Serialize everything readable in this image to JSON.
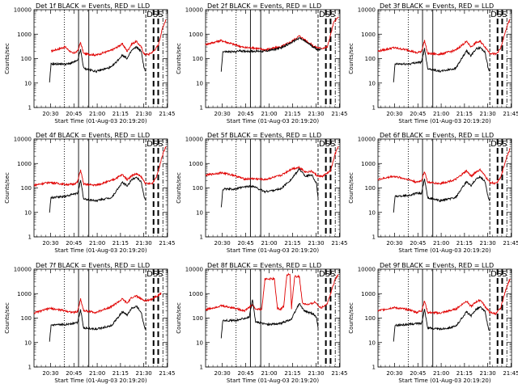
{
  "chart_data": {
    "type": "line",
    "layout": "3x3",
    "x_tick_labels": [
      "20:30",
      "20:45",
      "21:00",
      "21:15",
      "21:30",
      "21:45"
    ],
    "x_range_minutes": [
      0,
      86
    ],
    "y_scale": "log",
    "y_range": [
      1,
      10000
    ],
    "y_tick_labels": [
      "1",
      "10",
      "100",
      "1000",
      "10000"
    ],
    "ylabel": "Counts/sec",
    "xlabel": "Start Time (01-Aug-03 20:19:20)",
    "series_legend": "BLACK = Events, RED = LLD",
    "annotation": "DSS",
    "markers_minutes": {
      "dotted": [
        19.5
      ],
      "solid": [
        28.7,
        35.3
      ],
      "dashed": [
        72,
        77,
        80
      ]
    },
    "detectors": [
      {
        "name": "Det 1f",
        "title": "Det 1f BLACK = Events, RED = LLD",
        "red": [
          [
            11,
            200
          ],
          [
            20,
            300
          ],
          [
            25,
            160
          ],
          [
            28,
            200
          ],
          [
            30,
            450
          ],
          [
            32,
            160
          ],
          [
            40,
            140
          ],
          [
            50,
            220
          ],
          [
            57,
            400
          ],
          [
            60,
            200
          ],
          [
            63,
            400
          ],
          [
            66,
            500
          ],
          [
            69,
            300
          ],
          [
            71,
            150
          ],
          [
            74,
            150
          ],
          [
            77,
            200
          ],
          [
            80,
            350
          ],
          [
            83,
            2000
          ],
          [
            85,
            4000
          ]
        ],
        "black": [
          [
            10,
            10
          ],
          [
            11,
            60
          ],
          [
            19,
            60
          ],
          [
            22,
            60
          ],
          [
            25,
            70
          ],
          [
            28,
            80
          ],
          [
            30,
            230
          ],
          [
            32,
            40
          ],
          [
            40,
            30
          ],
          [
            50,
            45
          ],
          [
            57,
            140
          ],
          [
            60,
            100
          ],
          [
            63,
            220
          ],
          [
            66,
            300
          ],
          [
            69,
            200
          ],
          [
            71,
            40
          ],
          [
            72,
            30
          ]
        ]
      },
      {
        "name": "Det 2f",
        "title": "Det 2f BLACK = Events, RED = LLD",
        "red": [
          [
            0,
            380
          ],
          [
            10,
            550
          ],
          [
            18,
            380
          ],
          [
            25,
            280
          ],
          [
            30,
            280
          ],
          [
            38,
            230
          ],
          [
            48,
            300
          ],
          [
            55,
            500
          ],
          [
            60,
            850
          ],
          [
            65,
            500
          ],
          [
            70,
            300
          ],
          [
            74,
            260
          ],
          [
            78,
            300
          ],
          [
            82,
            3000
          ],
          [
            85,
            5000
          ]
        ],
        "black": [
          [
            10,
            30
          ],
          [
            11,
            190
          ],
          [
            19,
            190
          ],
          [
            22,
            210
          ],
          [
            25,
            200
          ],
          [
            30,
            200
          ],
          [
            38,
            200
          ],
          [
            48,
            270
          ],
          [
            55,
            450
          ],
          [
            60,
            700
          ],
          [
            65,
            450
          ],
          [
            70,
            270
          ],
          [
            72,
            230
          ],
          [
            74,
            250
          ]
        ]
      },
      {
        "name": "Det 3f",
        "title": "Det 3f BLACK = Events, RED = LLD",
        "red": [
          [
            0,
            200
          ],
          [
            10,
            280
          ],
          [
            20,
            220
          ],
          [
            25,
            170
          ],
          [
            28,
            200
          ],
          [
            30,
            550
          ],
          [
            32,
            160
          ],
          [
            40,
            150
          ],
          [
            50,
            220
          ],
          [
            57,
            500
          ],
          [
            60,
            300
          ],
          [
            63,
            450
          ],
          [
            66,
            500
          ],
          [
            69,
            300
          ],
          [
            72,
            170
          ],
          [
            76,
            150
          ],
          [
            79,
            260
          ],
          [
            83,
            2000
          ],
          [
            85,
            4000
          ]
        ],
        "black": [
          [
            10,
            10
          ],
          [
            11,
            60
          ],
          [
            20,
            60
          ],
          [
            25,
            70
          ],
          [
            28,
            70
          ],
          [
            30,
            260
          ],
          [
            32,
            40
          ],
          [
            40,
            30
          ],
          [
            50,
            40
          ],
          [
            57,
            200
          ],
          [
            60,
            130
          ],
          [
            63,
            250
          ],
          [
            66,
            280
          ],
          [
            69,
            180
          ],
          [
            71,
            40
          ],
          [
            72,
            30
          ]
        ]
      },
      {
        "name": "Det 4f",
        "title": "Det 4f BLACK = Events, RED = LLD",
        "red": [
          [
            0,
            130
          ],
          [
            10,
            170
          ],
          [
            20,
            140
          ],
          [
            25,
            140
          ],
          [
            28,
            170
          ],
          [
            30,
            550
          ],
          [
            32,
            140
          ],
          [
            40,
            130
          ],
          [
            50,
            200
          ],
          [
            57,
            350
          ],
          [
            60,
            220
          ],
          [
            63,
            320
          ],
          [
            66,
            380
          ],
          [
            69,
            280
          ],
          [
            72,
            150
          ],
          [
            76,
            150
          ],
          [
            79,
            300
          ],
          [
            83,
            2500
          ],
          [
            85,
            5000
          ]
        ],
        "black": [
          [
            10,
            10
          ],
          [
            11,
            40
          ],
          [
            20,
            45
          ],
          [
            25,
            55
          ],
          [
            28,
            60
          ],
          [
            30,
            200
          ],
          [
            32,
            35
          ],
          [
            40,
            30
          ],
          [
            50,
            40
          ],
          [
            57,
            170
          ],
          [
            60,
            120
          ],
          [
            63,
            220
          ],
          [
            66,
            280
          ],
          [
            69,
            180
          ],
          [
            71,
            40
          ],
          [
            72,
            30
          ]
        ]
      },
      {
        "name": "Det 5f",
        "title": "Det 5f BLACK = Events, RED = LLD",
        "red": [
          [
            0,
            330
          ],
          [
            10,
            420
          ],
          [
            18,
            330
          ],
          [
            25,
            230
          ],
          [
            30,
            240
          ],
          [
            38,
            220
          ],
          [
            48,
            320
          ],
          [
            55,
            600
          ],
          [
            60,
            700
          ],
          [
            64,
            450
          ],
          [
            68,
            480
          ],
          [
            72,
            300
          ],
          [
            75,
            300
          ],
          [
            80,
            500
          ],
          [
            83,
            2500
          ],
          [
            85,
            5000
          ]
        ],
        "black": [
          [
            10,
            15
          ],
          [
            11,
            90
          ],
          [
            19,
            90
          ],
          [
            25,
            110
          ],
          [
            30,
            120
          ],
          [
            38,
            70
          ],
          [
            48,
            90
          ],
          [
            55,
            230
          ],
          [
            60,
            600
          ],
          [
            64,
            300
          ],
          [
            68,
            350
          ],
          [
            71,
            150
          ],
          [
            72,
            40
          ]
        ]
      },
      {
        "name": "Det 6f",
        "title": "Det 6f BLACK = Events, RED = LLD",
        "red": [
          [
            0,
            220
          ],
          [
            10,
            300
          ],
          [
            20,
            220
          ],
          [
            25,
            170
          ],
          [
            28,
            200
          ],
          [
            30,
            480
          ],
          [
            32,
            170
          ],
          [
            40,
            150
          ],
          [
            50,
            220
          ],
          [
            57,
            500
          ],
          [
            60,
            300
          ],
          [
            63,
            450
          ],
          [
            66,
            550
          ],
          [
            69,
            300
          ],
          [
            72,
            170
          ],
          [
            76,
            150
          ],
          [
            79,
            260
          ],
          [
            83,
            2000
          ],
          [
            85,
            4000
          ]
        ],
        "black": [
          [
            10,
            10
          ],
          [
            11,
            45
          ],
          [
            20,
            50
          ],
          [
            25,
            60
          ],
          [
            28,
            60
          ],
          [
            30,
            230
          ],
          [
            32,
            40
          ],
          [
            40,
            30
          ],
          [
            50,
            40
          ],
          [
            57,
            180
          ],
          [
            60,
            120
          ],
          [
            63,
            230
          ],
          [
            66,
            280
          ],
          [
            69,
            180
          ],
          [
            71,
            40
          ],
          [
            72,
            30
          ]
        ]
      },
      {
        "name": "Det 7f",
        "title": "Det 7f BLACK = Events, RED = LLD",
        "red": [
          [
            0,
            160
          ],
          [
            10,
            250
          ],
          [
            20,
            200
          ],
          [
            25,
            170
          ],
          [
            28,
            180
          ],
          [
            30,
            600
          ],
          [
            32,
            200
          ],
          [
            40,
            170
          ],
          [
            50,
            300
          ],
          [
            57,
            600
          ],
          [
            60,
            400
          ],
          [
            63,
            700
          ],
          [
            66,
            800
          ],
          [
            69,
            600
          ],
          [
            72,
            500
          ],
          [
            76,
            600
          ],
          [
            79,
            800
          ],
          [
            82,
            1000
          ]
        ],
        "black": [
          [
            10,
            10
          ],
          [
            11,
            50
          ],
          [
            20,
            55
          ],
          [
            25,
            60
          ],
          [
            28,
            65
          ],
          [
            30,
            220
          ],
          [
            32,
            40
          ],
          [
            40,
            35
          ],
          [
            50,
            50
          ],
          [
            57,
            180
          ],
          [
            60,
            130
          ],
          [
            63,
            250
          ],
          [
            66,
            300
          ],
          [
            69,
            180
          ],
          [
            71,
            45
          ],
          [
            72,
            35
          ]
        ]
      },
      {
        "name": "Det 8f",
        "title": "Det 8f BLACK = Events, RED = LLD",
        "red": [
          [
            0,
            220
          ],
          [
            10,
            320
          ],
          [
            18,
            260
          ],
          [
            25,
            200
          ],
          [
            30,
            350
          ],
          [
            32,
            230
          ],
          [
            36,
            230
          ],
          [
            38,
            4000
          ],
          [
            44,
            4000
          ],
          [
            46,
            250
          ],
          [
            48,
            230
          ],
          [
            50,
            300
          ],
          [
            52,
            6000
          ],
          [
            54,
            6000
          ],
          [
            55,
            250
          ],
          [
            57,
            5000
          ],
          [
            60,
            5000
          ],
          [
            62,
            400
          ],
          [
            66,
            350
          ],
          [
            70,
            450
          ],
          [
            74,
            260
          ],
          [
            78,
            400
          ],
          [
            83,
            4000
          ],
          [
            85,
            6000
          ]
        ],
        "black": [
          [
            10,
            15
          ],
          [
            11,
            80
          ],
          [
            20,
            80
          ],
          [
            25,
            100
          ],
          [
            28,
            110
          ],
          [
            30,
            550
          ],
          [
            32,
            70
          ],
          [
            40,
            55
          ],
          [
            48,
            60
          ],
          [
            55,
            90
          ],
          [
            60,
            400
          ],
          [
            63,
            200
          ],
          [
            66,
            170
          ],
          [
            69,
            150
          ],
          [
            71,
            100
          ],
          [
            72,
            40
          ]
        ]
      },
      {
        "name": "Det 9f",
        "title": "Det 9f BLACK = Events, RED = LLD",
        "red": [
          [
            0,
            200
          ],
          [
            10,
            270
          ],
          [
            20,
            220
          ],
          [
            25,
            170
          ],
          [
            28,
            200
          ],
          [
            30,
            500
          ],
          [
            32,
            170
          ],
          [
            40,
            160
          ],
          [
            50,
            230
          ],
          [
            57,
            500
          ],
          [
            60,
            300
          ],
          [
            63,
            450
          ],
          [
            66,
            550
          ],
          [
            69,
            300
          ],
          [
            72,
            170
          ],
          [
            76,
            150
          ],
          [
            79,
            260
          ],
          [
            83,
            2000
          ],
          [
            85,
            4000
          ]
        ],
        "black": [
          [
            10,
            10
          ],
          [
            11,
            50
          ],
          [
            20,
            55
          ],
          [
            25,
            60
          ],
          [
            28,
            60
          ],
          [
            30,
            230
          ],
          [
            32,
            40
          ],
          [
            40,
            35
          ],
          [
            50,
            45
          ],
          [
            57,
            180
          ],
          [
            60,
            120
          ],
          [
            63,
            230
          ],
          [
            66,
            280
          ],
          [
            69,
            180
          ],
          [
            71,
            40
          ],
          [
            72,
            30
          ]
        ]
      }
    ]
  }
}
